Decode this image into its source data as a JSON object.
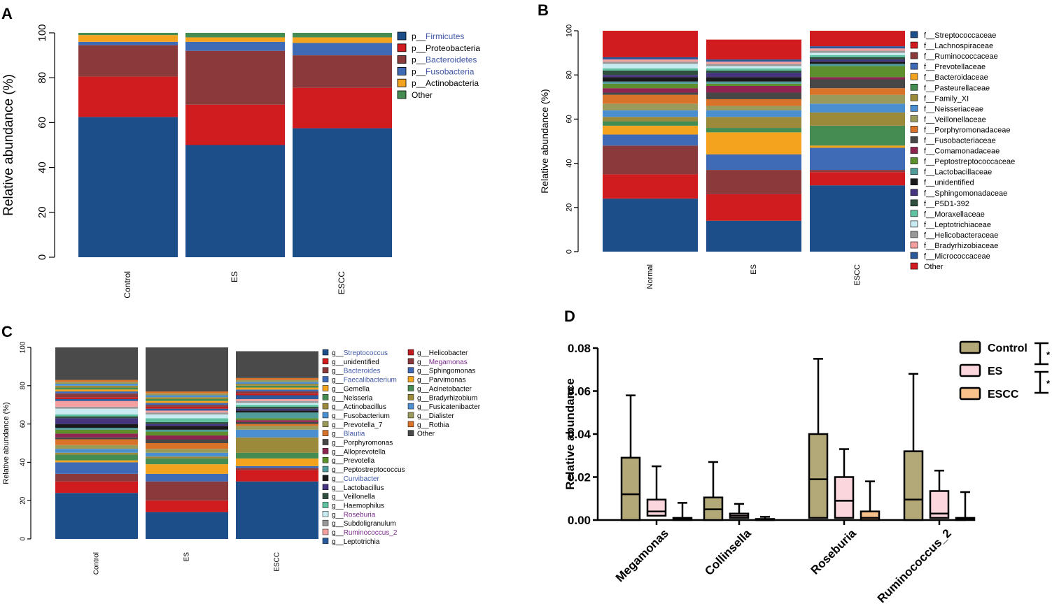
{
  "colors": {
    "Firmicutes": "#1c4e8a",
    "Proteobacteria": "#d01b1f",
    "Bacteroidetes": "#8b3a3c",
    "Fusobacteria": "#3f6ab5",
    "Actinobacteria": "#f3a31e",
    "OtherA": "#458c53",
    "bg_gray": "#4a4a4a",
    "kp_text": "#3f57a6",
    "purple_text": "#7a2a8a",
    "box_control": "#b3a877",
    "box_es": "#fbd7dd",
    "box_escc": "#f7c18c"
  },
  "chart_data": [
    {
      "panel": "A",
      "type": "bar",
      "stacked": true,
      "ylabel": "Relative abundance (%)",
      "ylim": [
        0,
        100
      ],
      "yticks": [
        "0",
        "20",
        "40",
        "60",
        "80",
        "100"
      ],
      "categories": [
        "Control",
        "ES",
        "ESCC"
      ],
      "series": [
        {
          "name": "p__Firmicutes",
          "values": [
            62.5,
            50.0,
            57.5
          ]
        },
        {
          "name": "p__Proteobacteria",
          "values": [
            18.0,
            18.0,
            18.0
          ]
        },
        {
          "name": "p__Bacteroidetes",
          "values": [
            14.0,
            24.0,
            14.5
          ]
        },
        {
          "name": "p__Fusobacteria",
          "values": [
            1.5,
            4.0,
            5.5
          ]
        },
        {
          "name": "p__Actinobacteria",
          "values": [
            3.0,
            2.0,
            2.5
          ]
        },
        {
          "name": "Other",
          "values": [
            1.0,
            2.0,
            2.0
          ]
        }
      ],
      "legend_prefix": "p__",
      "legend_names": [
        "Firmicutes",
        "Proteobacteria",
        "Bacteroidetes",
        "Fusobacteria",
        "Actinobacteria",
        "Other"
      ]
    },
    {
      "panel": "B",
      "type": "bar",
      "stacked": true,
      "ylabel": "Relative abundance (%)",
      "ylim": [
        0,
        100
      ],
      "yticks": [
        "0",
        "20",
        "40",
        "60",
        "80",
        "100"
      ],
      "categories": [
        "Normal",
        "ES",
        "ESCC"
      ],
      "series": [
        {
          "name": "f__Streptococcaceae",
          "color": "#1c4e8a",
          "values": [
            24,
            14,
            30
          ]
        },
        {
          "name": "f__Lachnospiraceae",
          "color": "#d01b1f",
          "values": [
            11,
            12,
            6
          ]
        },
        {
          "name": "f__Ruminococcaceae",
          "color": "#8b3a3c",
          "values": [
            13,
            11,
            1
          ]
        },
        {
          "name": "f__Prevotellaceae",
          "color": "#3f6ab5",
          "values": [
            5,
            7,
            10
          ]
        },
        {
          "name": "f__Bacteroidaceae",
          "color": "#f3a31e",
          "values": [
            4,
            10,
            1
          ]
        },
        {
          "name": "f__Pasteurellaceae",
          "color": "#458c53",
          "values": [
            2,
            2,
            9
          ]
        },
        {
          "name": "f__Family_XI",
          "color": "#9a8a3a",
          "values": [
            2,
            5,
            6
          ]
        },
        {
          "name": "f__Neisseriaceae",
          "color": "#4b8fd0",
          "values": [
            3,
            3,
            4
          ]
        },
        {
          "name": "f__Veillonellaceae",
          "color": "#9a9a5a",
          "values": [
            3,
            2,
            4
          ]
        },
        {
          "name": "f__Porphyromonadaceae",
          "color": "#d9732a",
          "values": [
            4,
            3,
            3
          ]
        },
        {
          "name": "f__Fusobacteriaceae",
          "color": "#474747",
          "values": [
            1,
            3,
            4
          ]
        },
        {
          "name": "f__Comamonadaceae",
          "color": "#8e2450",
          "values": [
            2,
            3,
            1
          ]
        },
        {
          "name": "f__Peptostreptococcaceae",
          "color": "#5d8f2c",
          "values": [
            2,
            1,
            5
          ]
        },
        {
          "name": "f__Lactobacillaceae",
          "color": "#4f9a9a",
          "values": [
            1,
            1,
            1
          ]
        },
        {
          "name": "f__unidentified",
          "color": "#1a1a1a",
          "values": [
            2,
            2,
            1
          ]
        },
        {
          "name": "f__Sphingomonadaceae",
          "color": "#46347f",
          "values": [
            1,
            2,
            1
          ]
        },
        {
          "name": "f__P5D1-392",
          "color": "#2f4f3f",
          "values": [
            2,
            1,
            1
          ]
        },
        {
          "name": "f__Moraxellaceae",
          "color": "#5fc2a2",
          "values": [
            1,
            1,
            1
          ]
        },
        {
          "name": "f__Leptotrichiaceae",
          "color": "#c9ecf2",
          "values": [
            2,
            1,
            1
          ]
        },
        {
          "name": "f__Helicobacteraceae",
          "color": "#999999",
          "values": [
            1,
            1,
            1
          ]
        },
        {
          "name": "f__Bradyrhizobiaceae",
          "color": "#f4a0a0",
          "values": [
            1,
            1,
            1
          ]
        },
        {
          "name": "f__Micrococcaceae",
          "color": "#2b5a9a",
          "values": [
            1,
            1,
            1
          ]
        },
        {
          "name": "Other",
          "color": "#d01b1f",
          "values": [
            12,
            9,
            8
          ]
        }
      ]
    },
    {
      "panel": "C",
      "type": "bar",
      "stacked": true,
      "ylabel": "Relative abundance (%)",
      "ylim": [
        0,
        100
      ],
      "yticks": [
        "0",
        "20",
        "40",
        "60",
        "80",
        "100"
      ],
      "categories": [
        "Control",
        "ES",
        "ESCC"
      ],
      "series": [
        {
          "name": "g__Streptococcus",
          "color": "#1c4e8a",
          "highlight": "kp",
          "values": [
            24,
            14,
            30
          ]
        },
        {
          "name": "g__unidentified",
          "color": "#d01b1f",
          "values": [
            6,
            6,
            6
          ]
        },
        {
          "name": "g__Bacteroides",
          "color": "#8b3a3c",
          "highlight": "kp",
          "values": [
            4,
            10,
            1
          ]
        },
        {
          "name": "g__Faecalibacterium",
          "color": "#3f6ab5",
          "highlight": "kp",
          "values": [
            6,
            4,
            1
          ]
        },
        {
          "name": "g__Gemella",
          "color": "#f3a31e",
          "values": [
            1,
            5,
            4
          ]
        },
        {
          "name": "g__Neisseria",
          "color": "#458c53",
          "values": [
            3,
            3,
            3
          ]
        },
        {
          "name": "g__Actinobacillus",
          "color": "#9a8a3a",
          "values": [
            1,
            1,
            8
          ]
        },
        {
          "name": "g__Fusobacterium",
          "color": "#4b8fd0",
          "values": [
            2,
            2,
            4
          ]
        },
        {
          "name": "g__Prevotella_7",
          "color": "#9a9a5a",
          "values": [
            2,
            2,
            2
          ]
        },
        {
          "name": "g__Blautia",
          "color": "#d9732a",
          "highlight": "kp",
          "values": [
            3,
            3,
            1
          ]
        },
        {
          "name": "g__Porphyromonas",
          "color": "#474747",
          "values": [
            1,
            2,
            1
          ]
        },
        {
          "name": "g__Alloprevotella",
          "color": "#8e2450",
          "values": [
            2,
            2,
            1
          ]
        },
        {
          "name": "g__Prevotella",
          "color": "#5d8f2c",
          "values": [
            2,
            2,
            1
          ]
        },
        {
          "name": "g__Peptostreptococcus",
          "color": "#4f9a9a",
          "values": [
            1,
            1,
            3
          ]
        },
        {
          "name": "g__Curvibacter",
          "color": "#1a1a1a",
          "highlight": "kp",
          "values": [
            2,
            2,
            1
          ]
        },
        {
          "name": "g__Lactobacillus",
          "color": "#46347f",
          "values": [
            3,
            1,
            1
          ]
        },
        {
          "name": "g__Veillonella",
          "color": "#2f4f3f",
          "values": [
            1,
            1,
            1
          ]
        },
        {
          "name": "g__Haemophilus",
          "color": "#5fc2a2",
          "values": [
            1,
            2,
            1
          ]
        },
        {
          "name": "g__Roseburia",
          "color": "#c9ecf2",
          "highlight": "purple",
          "values": [
            3,
            2,
            1
          ]
        },
        {
          "name": "g__Subdoligranulum",
          "color": "#999999",
          "values": [
            1,
            1,
            1
          ]
        },
        {
          "name": "g__Ruminococcus_2",
          "color": "#f4a0a0",
          "highlight": "purple",
          "values": [
            3,
            1,
            1
          ]
        },
        {
          "name": "g__Leptotrichia",
          "color": "#2b5a9a",
          "values": [
            1,
            1,
            2
          ]
        },
        {
          "name": "g__Helicobacter",
          "color": "#c11e20",
          "values": [
            1,
            1,
            1
          ]
        },
        {
          "name": "g__Megamonas",
          "color": "#8b3a3c",
          "highlight": "purple",
          "values": [
            2,
            1,
            1
          ]
        },
        {
          "name": "g__Sphingomonas",
          "color": "#3f6ab5",
          "values": [
            1,
            1,
            1
          ]
        },
        {
          "name": "g__Parvimonas",
          "color": "#f3a31e",
          "values": [
            1,
            1,
            1
          ]
        },
        {
          "name": "g__Acinetobacter",
          "color": "#458c53",
          "values": [
            1,
            1,
            1
          ]
        },
        {
          "name": "g__Bradyrhizobium",
          "color": "#9a8a3a",
          "values": [
            1,
            1,
            1
          ]
        },
        {
          "name": "g__Fusicatenibacter",
          "color": "#4b8fd0",
          "values": [
            1,
            1,
            1
          ]
        },
        {
          "name": "g__Dialister",
          "color": "#9a9a5a",
          "values": [
            1,
            1,
            1
          ]
        },
        {
          "name": "g__Rothia",
          "color": "#d9732a",
          "values": [
            1,
            1,
            1
          ]
        },
        {
          "name": "Other",
          "color": "#4a4a4a",
          "values": [
            20,
            24,
            14
          ]
        }
      ]
    },
    {
      "panel": "D",
      "type": "box",
      "ylabel": "Relative abundance",
      "ylim": [
        0,
        0.08
      ],
      "yticks": [
        "0.00",
        "0.02",
        "0.04",
        "0.06",
        "0.08"
      ],
      "categories": [
        "Megamonas",
        "Collinsella",
        "Roseburia",
        "Ruminococcus_2"
      ],
      "groups": [
        "Control",
        "ES",
        "ESCC"
      ],
      "boxes": [
        [
          [
            0,
            0,
            0.012,
            0.029,
            0.058
          ],
          [
            0,
            0.002,
            0.004,
            0.0095,
            0.025
          ],
          [
            0,
            0,
            0.0005,
            0.001,
            0.008
          ]
        ],
        [
          [
            0,
            0,
            0.005,
            0.0105,
            0.027
          ],
          [
            0,
            0.001,
            0.002,
            0.003,
            0.0075
          ],
          [
            0,
            0,
            0,
            0.0005,
            0.0015
          ]
        ],
        [
          [
            0,
            0.001,
            0.019,
            0.04,
            0.075
          ],
          [
            0,
            0.001,
            0.009,
            0.02,
            0.033
          ],
          [
            0,
            0,
            0.001,
            0.004,
            0.018
          ]
        ],
        [
          [
            0,
            0,
            0.0095,
            0.032,
            0.068
          ],
          [
            0,
            0.001,
            0.003,
            0.0135,
            0.023
          ],
          [
            0,
            0,
            0.0003,
            0.001,
            0.013
          ]
        ]
      ],
      "significance": [
        "*",
        "*"
      ]
    }
  ],
  "panel_labels": {
    "a": "A",
    "b": "B",
    "c": "C",
    "d": "D"
  }
}
